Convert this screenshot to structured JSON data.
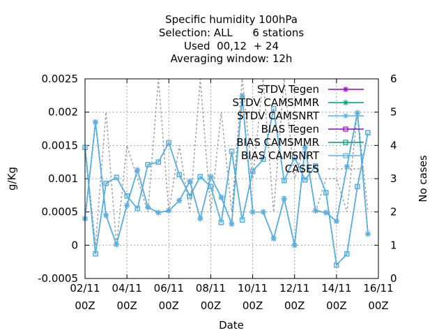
{
  "chart_data": {
    "type": "line",
    "title_lines": [
      "Specific humidity 100hPa",
      "Selection: ALL      6 stations",
      "Used  00,12  + 24",
      "Averaging window: 12h"
    ],
    "xlabel": "Date",
    "ylabel": "g/Kg",
    "y2label": "No cases",
    "xlim": [
      "2022-11-02T00:00",
      "2022-11-16T00:00"
    ],
    "ylim": [
      -0.0005,
      0.0025
    ],
    "y2lim": [
      0,
      6
    ],
    "x_ticks": [
      {
        "x": "2022-11-02T00:00",
        "line1": "02/11",
        "line2": "00Z"
      },
      {
        "x": "2022-11-04T00:00",
        "line1": "04/11",
        "line2": "00Z"
      },
      {
        "x": "2022-11-06T00:00",
        "line1": "06/11",
        "line2": "00Z"
      },
      {
        "x": "2022-11-08T00:00",
        "line1": "08/11",
        "line2": "00Z"
      },
      {
        "x": "2022-11-10T00:00",
        "line1": "10/11",
        "line2": "00Z"
      },
      {
        "x": "2022-11-12T00:00",
        "line1": "12/11",
        "line2": "00Z"
      },
      {
        "x": "2022-11-14T00:00",
        "line1": "14/11",
        "line2": "00Z"
      },
      {
        "x": "2022-11-16T00:00",
        "line1": "16/11",
        "line2": "00Z"
      }
    ],
    "y_ticks": [
      {
        "v": -0.0005,
        "label": "-0.0005"
      },
      {
        "v": 0,
        "label": "0"
      },
      {
        "v": 0.0005,
        "label": "0.0005"
      },
      {
        "v": 0.001,
        "label": "0.001"
      },
      {
        "v": 0.0015,
        "label": "0.0015"
      },
      {
        "v": 0.002,
        "label": "0.002"
      },
      {
        "v": 0.0025,
        "label": "0.0025"
      }
    ],
    "y2_ticks": [
      {
        "v": 0,
        "label": "0"
      },
      {
        "v": 1,
        "label": "1"
      },
      {
        "v": 2,
        "label": "2"
      },
      {
        "v": 3,
        "label": "3"
      },
      {
        "v": 4,
        "label": "4"
      },
      {
        "v": 5,
        "label": "5"
      },
      {
        "v": 6,
        "label": "6"
      }
    ],
    "grid": true,
    "legend_position": "top-right",
    "x": [
      "2022-11-02T00:00",
      "2022-11-02T12:00",
      "2022-11-03T00:00",
      "2022-11-03T12:00",
      "2022-11-04T00:00",
      "2022-11-04T12:00",
      "2022-11-05T00:00",
      "2022-11-05T12:00",
      "2022-11-06T00:00",
      "2022-11-06T12:00",
      "2022-11-07T00:00",
      "2022-11-07T12:00",
      "2022-11-08T00:00",
      "2022-11-08T12:00",
      "2022-11-09T00:00",
      "2022-11-09T12:00",
      "2022-11-10T00:00",
      "2022-11-10T12:00",
      "2022-11-11T00:00",
      "2022-11-11T12:00",
      "2022-11-12T00:00",
      "2022-11-12T12:00",
      "2022-11-13T00:00",
      "2022-11-13T12:00",
      "2022-11-14T00:00",
      "2022-11-14T12:00",
      "2022-11-15T00:00",
      "2022-11-15T12:00"
    ],
    "series": [
      {
        "name": "STDV Tegen",
        "axis": "y",
        "color": "#9400d3",
        "marker": "star",
        "values": [
          0.0004,
          0.00185,
          0.00045,
          1e-05,
          0.0006,
          0.00113,
          0.00057,
          0.00049,
          0.00052,
          0.00067,
          0.00096,
          0.0004,
          0.00103,
          0.00072,
          0.00032,
          0.00224,
          0.0005,
          0.0005,
          0.0001,
          0.0007,
          0.0,
          0.00147,
          0.00052,
          0.00049,
          0.00036,
          0.00118,
          0.00199,
          0.00017
        ]
      },
      {
        "name": "STDV CAMSMMR",
        "axis": "y",
        "color": "#009e73",
        "marker": "star",
        "values": [
          0.0004,
          0.00185,
          0.00045,
          1e-05,
          0.0006,
          0.00113,
          0.00057,
          0.00049,
          0.00052,
          0.00067,
          0.00096,
          0.0004,
          0.00103,
          0.00072,
          0.00032,
          0.00224,
          0.0005,
          0.0005,
          0.0001,
          0.0007,
          0.0,
          0.00147,
          0.00052,
          0.00049,
          0.00036,
          0.00118,
          0.00199,
          0.00017
        ]
      },
      {
        "name": "STDV CAMSNRT",
        "axis": "y",
        "color": "#56b4e9",
        "marker": "star",
        "values": [
          0.0004,
          0.00185,
          0.00045,
          1e-05,
          0.0006,
          0.00113,
          0.00057,
          0.00049,
          0.00052,
          0.00067,
          0.00096,
          0.0004,
          0.00103,
          0.00072,
          0.00032,
          0.00224,
          0.0005,
          0.0005,
          0.0001,
          0.0007,
          0.0,
          0.00147,
          0.00052,
          0.00049,
          0.00036,
          0.00118,
          0.00199,
          0.00017
        ]
      },
      {
        "name": "BIAS Tegen",
        "axis": "y",
        "color": "#9400d3",
        "marker": "square",
        "values": [
          0.00147,
          -0.00013,
          0.00093,
          0.00102,
          0.00074,
          0.00055,
          0.00121,
          0.00125,
          0.00154,
          0.00106,
          0.00074,
          0.00103,
          0.00088,
          0.00034,
          0.00141,
          0.00038,
          0.00111,
          0.00129,
          0.00205,
          0.00097,
          0.00132,
          0.00098,
          0.00119,
          0.00079,
          -0.0003,
          -0.00013,
          0.00088,
          0.00169
        ]
      },
      {
        "name": "BIAS CAMSMMR",
        "axis": "y",
        "color": "#009e73",
        "marker": "square",
        "values": [
          0.00147,
          -0.00013,
          0.00093,
          0.00102,
          0.00074,
          0.00055,
          0.00121,
          0.00125,
          0.00154,
          0.00106,
          0.00074,
          0.00103,
          0.00088,
          0.00034,
          0.00141,
          0.00038,
          0.00111,
          0.00129,
          0.00205,
          0.00097,
          0.00132,
          0.00098,
          0.00119,
          0.00079,
          -0.0003,
          -0.00013,
          0.00088,
          0.00169
        ]
      },
      {
        "name": "BIAS CAMSNRT",
        "axis": "y",
        "color": "#56b4e9",
        "marker": "square",
        "values": [
          0.00147,
          -0.00013,
          0.00093,
          0.00102,
          0.00074,
          0.00055,
          0.00121,
          0.00125,
          0.00154,
          0.00106,
          0.00074,
          0.00103,
          0.00088,
          0.00034,
          0.00141,
          0.00038,
          0.00111,
          0.00129,
          0.00205,
          0.00097,
          0.00132,
          0.00098,
          0.00119,
          0.00079,
          -0.0003,
          -0.00013,
          0.00088,
          0.00169
        ]
      },
      {
        "name": "CASES",
        "axis": "y2",
        "color": "#a0a0a0",
        "dashed": true,
        "values": [
          4,
          1,
          5,
          1,
          4,
          3,
          2,
          6,
          2,
          4,
          2,
          6,
          2,
          5,
          2,
          6,
          3,
          6,
          2,
          6,
          3,
          4,
          2,
          3,
          3,
          2,
          5,
          2
        ]
      }
    ]
  }
}
